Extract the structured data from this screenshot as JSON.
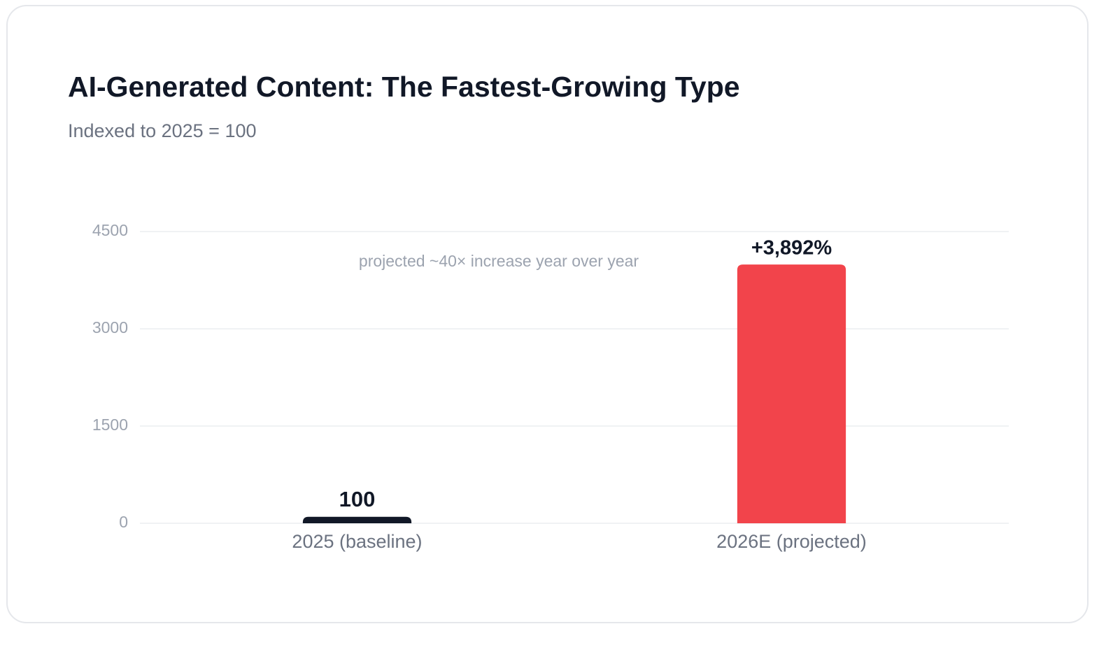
{
  "chart_data": {
    "type": "bar",
    "title": "AI-Generated Content: The Fastest-Growing Type",
    "subtitle": "Indexed to 2025 = 100",
    "categories": [
      "2025 (baseline)",
      "2026E (projected)"
    ],
    "values": [
      100,
      3992
    ],
    "colors": [
      "#111827",
      "#f2444b"
    ],
    "annotations": [
      "+3,892%",
      "projected ~40× increase year over year"
    ],
    "ylim": [
      0,
      4500
    ],
    "yticks": [
      0,
      1500,
      3000,
      4500
    ],
    "grid": true
  }
}
